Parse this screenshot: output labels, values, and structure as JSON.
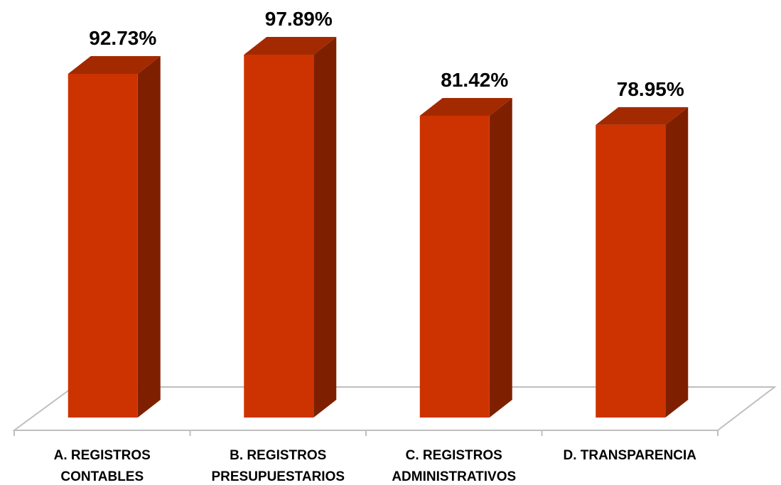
{
  "chart_data": {
    "type": "bar3d",
    "categories": [
      "A. REGISTROS CONTABLES",
      "B. REGISTROS PRESUPUESTARIOS",
      "C. REGISTROS ADMINISTRATIVOS",
      "D. TRANSPARENCIA"
    ],
    "values": [
      92.73,
      97.89,
      81.42,
      78.95
    ],
    "value_labels": [
      "92.73%",
      "97.89%",
      "81.42%",
      "78.95%"
    ],
    "color": "#cc3300"
  }
}
